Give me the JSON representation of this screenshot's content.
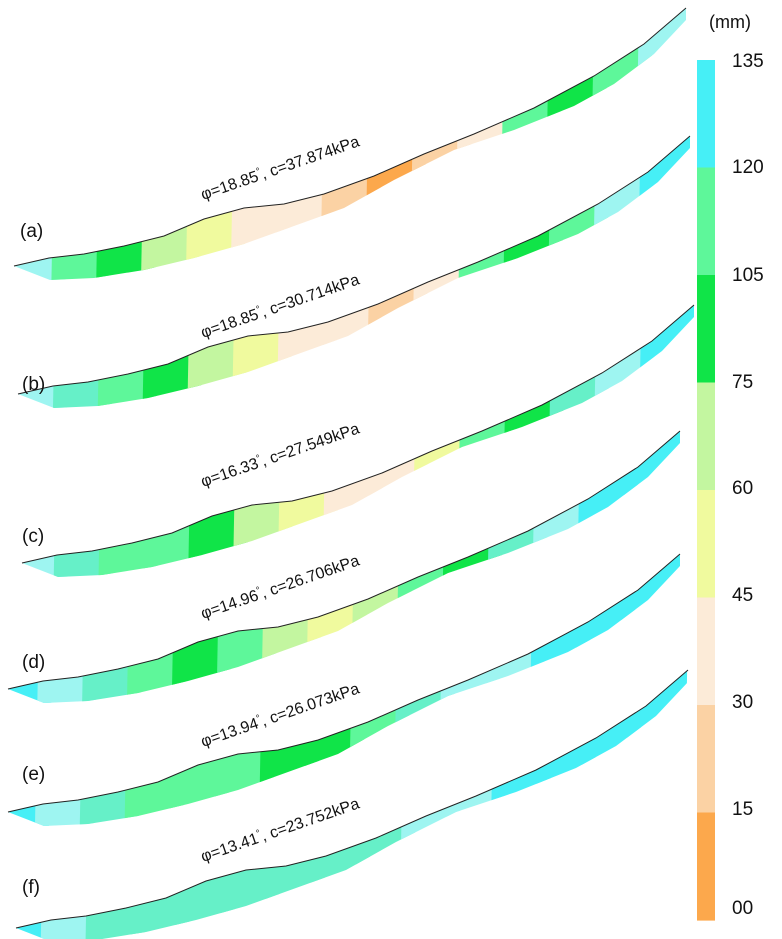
{
  "colorbar": {
    "unit": "(mm)",
    "labels": [
      "135",
      "120",
      "105",
      "75",
      "60",
      "45",
      "30",
      "15",
      "00"
    ],
    "colors": [
      "#46eff6",
      "#5ef79a",
      "#10e448",
      "#c3f6a0",
      "#f0fa9e",
      "#fcebd8",
      "#fbd2a4",
      "#fca84c"
    ]
  },
  "palette": {
    "cyan": "#46eff6",
    "light_cyan": "#9ef5f1",
    "aqua": "#66f0c8",
    "mint": "#5ef79a",
    "green": "#10e448",
    "light_green": "#c3f6a0",
    "yellow": "#f0fa9e",
    "cream": "#fcebd8",
    "peach": "#fbd2a4",
    "orange": "#fca84c"
  },
  "panels": [
    {
      "label": "(a)",
      "phi": "φ=18.85",
      "degree": "°",
      "cohesion": ", c=37.874kPa",
      "zones": [
        "light_cyan",
        "mint",
        "green",
        "light_green",
        "yellow",
        "cream",
        "cream",
        "peach",
        "orange",
        "peach",
        "cream",
        "mint",
        "green",
        "mint",
        "light_cyan"
      ]
    },
    {
      "label": "(b)",
      "phi": "φ=18.85",
      "degree": "°",
      "cohesion": ", c=30.714kPa",
      "zones": [
        "light_cyan",
        "aqua",
        "mint",
        "green",
        "light_green",
        "yellow",
        "cream",
        "cream",
        "peach",
        "cream",
        "mint",
        "green",
        "mint",
        "light_cyan",
        "cyan"
      ]
    },
    {
      "label": "(c)",
      "phi": "φ=16.33",
      "degree": "°",
      "cohesion": ", c=27.549kPa",
      "zones": [
        "light_cyan",
        "aqua",
        "mint",
        "mint",
        "green",
        "light_green",
        "yellow",
        "cream",
        "cream",
        "yellow",
        "mint",
        "green",
        "aqua",
        "light_cyan",
        "cyan"
      ]
    },
    {
      "label": "(d)",
      "phi": "φ=14.96",
      "degree": "°",
      "cohesion": ", c=26.706kPa",
      "zones": [
        "cyan",
        "light_cyan",
        "aqua",
        "mint",
        "green",
        "mint",
        "light_green",
        "yellow",
        "light_green",
        "mint",
        "green",
        "aqua",
        "light_cyan",
        "cyan",
        "cyan"
      ]
    },
    {
      "label": "(e)",
      "phi": "φ=13.94",
      "degree": "°",
      "cohesion": ", c=26.073kPa",
      "zones": [
        "cyan",
        "light_cyan",
        "aqua",
        "mint",
        "mint",
        "mint",
        "green",
        "green",
        "mint",
        "aqua",
        "light_cyan",
        "light_cyan",
        "cyan",
        "cyan",
        "cyan"
      ]
    },
    {
      "label": "(f)",
      "phi": "φ=13.41",
      "degree": "°",
      "cohesion": ", c=23.752kPa",
      "zones": [
        "cyan",
        "light_cyan",
        "aqua",
        "aqua",
        "aqua",
        "aqua",
        "aqua",
        "aqua",
        "aqua",
        "light_cyan",
        "light_cyan",
        "cyan",
        "cyan",
        "cyan",
        "cyan"
      ]
    }
  ]
}
